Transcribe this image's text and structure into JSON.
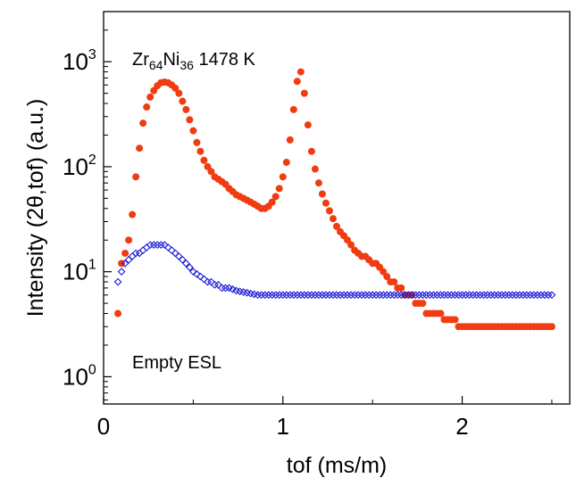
{
  "chart_data": {
    "type": "scatter",
    "xlabel": "tof (ms/m)",
    "ylabel": "Intensity (2θ,tof)  (a.u.)",
    "xlim": [
      0,
      2.6
    ],
    "ylim": [
      0.55,
      3000
    ],
    "yscale": "log",
    "x_ticks": [
      {
        "value": 0,
        "label": "0"
      },
      {
        "value": 1,
        "label": "1"
      },
      {
        "value": 2,
        "label": "2"
      }
    ],
    "y_ticks": [
      {
        "value": 1,
        "base": "10",
        "exp": "0"
      },
      {
        "value": 10,
        "base": "10",
        "exp": "1"
      },
      {
        "value": 100,
        "base": "10",
        "exp": "2"
      },
      {
        "value": 1000,
        "base": "10",
        "exp": "3"
      }
    ],
    "sample_label": {
      "element1": "Zr",
      "sub1": "64",
      "element2": "Ni",
      "sub2": "36",
      "temp": " 1478 K"
    },
    "series": [
      {
        "label": "Zr64Ni36 1478 K",
        "color": "#f03c10",
        "marker": "filled-circle",
        "x": [
          0.08,
          0.1,
          0.12,
          0.14,
          0.16,
          0.18,
          0.2,
          0.22,
          0.24,
          0.26,
          0.28,
          0.3,
          0.32,
          0.34,
          0.36,
          0.38,
          0.4,
          0.42,
          0.44,
          0.46,
          0.48,
          0.5,
          0.52,
          0.54,
          0.56,
          0.58,
          0.6,
          0.62,
          0.64,
          0.66,
          0.68,
          0.7,
          0.72,
          0.74,
          0.76,
          0.78,
          0.8,
          0.82,
          0.84,
          0.86,
          0.88,
          0.9,
          0.92,
          0.94,
          0.96,
          0.98,
          1.0,
          1.02,
          1.04,
          1.06,
          1.08,
          1.1,
          1.12,
          1.14,
          1.16,
          1.18,
          1.2,
          1.22,
          1.24,
          1.26,
          1.28,
          1.3,
          1.32,
          1.34,
          1.36,
          1.38,
          1.4,
          1.42,
          1.44,
          1.46,
          1.48,
          1.5,
          1.52,
          1.54,
          1.56,
          1.58,
          1.6,
          1.62,
          1.64,
          1.66,
          1.68,
          1.7,
          1.72,
          1.74,
          1.76,
          1.78,
          1.8,
          1.82,
          1.84,
          1.86,
          1.88,
          1.9,
          1.92,
          1.94,
          1.96,
          1.98,
          2.0,
          2.02,
          2.04,
          2.06,
          2.08,
          2.1,
          2.12,
          2.14,
          2.16,
          2.18,
          2.2,
          2.22,
          2.24,
          2.26,
          2.28,
          2.3,
          2.32,
          2.34,
          2.36,
          2.38,
          2.4,
          2.42,
          2.44,
          2.46,
          2.48,
          2.5
        ],
        "y": [
          4,
          12,
          15,
          20,
          35,
          80,
          150,
          260,
          370,
          460,
          530,
          590,
          630,
          640,
          630,
          600,
          560,
          500,
          420,
          350,
          280,
          220,
          170,
          140,
          115,
          100,
          90,
          80,
          76,
          72,
          68,
          62,
          58,
          54,
          52,
          50,
          48,
          46,
          44,
          42,
          40,
          40,
          42,
          46,
          52,
          62,
          80,
          110,
          180,
          350,
          650,
          800,
          500,
          250,
          140,
          95,
          70,
          55,
          45,
          38,
          32,
          27,
          24,
          22,
          20,
          18,
          16,
          15,
          14,
          14,
          13,
          12,
          12,
          11,
          10,
          9,
          8,
          8,
          7,
          7,
          6,
          6,
          6,
          5,
          5,
          5,
          4,
          4,
          4,
          4,
          4,
          3.5,
          3.5,
          3.5,
          3.5,
          3,
          3,
          3,
          3,
          3,
          3,
          3,
          3,
          3,
          3,
          3,
          3,
          3,
          3,
          3,
          3,
          3,
          3,
          3,
          3,
          3,
          3,
          3,
          3,
          3,
          3,
          3
        ]
      },
      {
        "label": "Empty ESL",
        "color": "#1a1ad6",
        "marker": "open-diamond",
        "x": [
          0.08,
          0.1,
          0.12,
          0.14,
          0.16,
          0.18,
          0.2,
          0.22,
          0.24,
          0.26,
          0.28,
          0.3,
          0.32,
          0.34,
          0.36,
          0.38,
          0.4,
          0.42,
          0.44,
          0.46,
          0.48,
          0.5,
          0.52,
          0.54,
          0.56,
          0.58,
          0.6,
          0.62,
          0.64,
          0.66,
          0.68,
          0.7,
          0.72,
          0.74,
          0.76,
          0.78,
          0.8,
          0.82,
          0.84,
          0.86,
          0.88,
          0.9,
          0.92,
          0.94,
          0.96,
          0.98,
          1.0,
          1.02,
          1.04,
          1.06,
          1.08,
          1.1,
          1.12,
          1.14,
          1.16,
          1.18,
          1.2,
          1.22,
          1.24,
          1.26,
          1.28,
          1.3,
          1.32,
          1.34,
          1.36,
          1.38,
          1.4,
          1.42,
          1.44,
          1.46,
          1.48,
          1.5,
          1.52,
          1.54,
          1.56,
          1.58,
          1.6,
          1.62,
          1.64,
          1.66,
          1.68,
          1.7,
          1.72,
          1.74,
          1.76,
          1.78,
          1.8,
          1.82,
          1.84,
          1.86,
          1.88,
          1.9,
          1.92,
          1.94,
          1.96,
          1.98,
          2.0,
          2.02,
          2.04,
          2.06,
          2.08,
          2.1,
          2.12,
          2.14,
          2.16,
          2.18,
          2.2,
          2.22,
          2.24,
          2.26,
          2.28,
          2.3,
          2.32,
          2.34,
          2.36,
          2.38,
          2.4,
          2.42,
          2.44,
          2.46,
          2.48,
          2.5
        ],
        "y": [
          8,
          10,
          12,
          13,
          14,
          15,
          15,
          16,
          17,
          18,
          18,
          18,
          18,
          18,
          17,
          16,
          15,
          14,
          13,
          12,
          11,
          10,
          9.5,
          9,
          8.5,
          8,
          8,
          7.5,
          7.5,
          7,
          7,
          7,
          6.8,
          6.6,
          6.5,
          6.4,
          6.3,
          6.2,
          6.1,
          6,
          6,
          6,
          6,
          6,
          6,
          6,
          6,
          6,
          6,
          6,
          6,
          6,
          6,
          6,
          6,
          6,
          6,
          6,
          6,
          6,
          6,
          6,
          6,
          6,
          6,
          6,
          6,
          6,
          6,
          6,
          6,
          6,
          6,
          6,
          6,
          6,
          6,
          6,
          6,
          6,
          6,
          6,
          6,
          6,
          6,
          6,
          6,
          6,
          6,
          6,
          6,
          6,
          6,
          6,
          6,
          6,
          6,
          6,
          6,
          6,
          6,
          6,
          6,
          6,
          6,
          6,
          6,
          6,
          6,
          6,
          6,
          6,
          6,
          6,
          6,
          6,
          6,
          6,
          6,
          6,
          6,
          6
        ]
      }
    ],
    "annotations": [
      "Zr64Ni36 1478 K",
      "Empty ESL"
    ]
  }
}
